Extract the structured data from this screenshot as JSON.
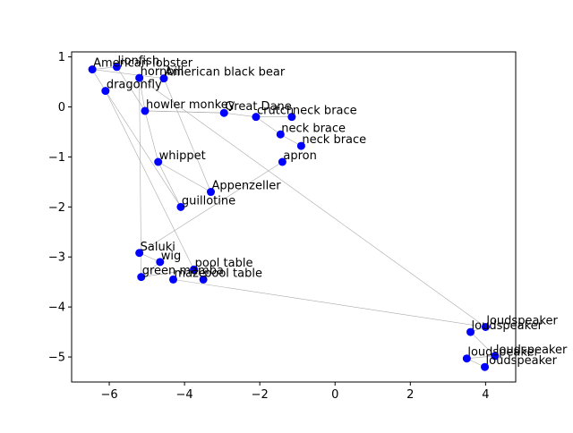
{
  "chart_data": {
    "type": "scatter",
    "title": "",
    "xlabel": "",
    "ylabel": "",
    "xlim": [
      -7.0,
      4.8
    ],
    "ylim": [
      -5.5,
      1.1
    ],
    "xticks": [
      -6,
      -4,
      -2,
      0,
      2,
      4
    ],
    "yticks": [
      1,
      0,
      -1,
      -2,
      -3,
      -4,
      -5
    ],
    "xtick_labels": [
      "−6",
      "−4",
      "−2",
      "0",
      "2",
      "4"
    ],
    "ytick_labels": [
      "1",
      "0",
      "−1",
      "−2",
      "−3",
      "−4",
      "−5"
    ],
    "grid": false,
    "marker_color": "#0000ff",
    "line_color": "#aaaaaa",
    "points": [
      {
        "label": "lionfish",
        "x": -5.8,
        "y": 0.8
      },
      {
        "label": "American lobster",
        "x": -6.45,
        "y": 0.75
      },
      {
        "label": "hornbill",
        "x": -5.2,
        "y": 0.58
      },
      {
        "label": "American black bear",
        "x": -4.55,
        "y": 0.57
      },
      {
        "label": "dragonfly",
        "x": -6.1,
        "y": 0.32
      },
      {
        "label": "howler monkey",
        "x": -5.05,
        "y": -0.08
      },
      {
        "label": "Great Dane",
        "x": -2.95,
        "y": -0.12
      },
      {
        "label": "crutch",
        "x": -2.1,
        "y": -0.2
      },
      {
        "label": "neck brace",
        "x": -1.15,
        "y": -0.2
      },
      {
        "label": "neck brace",
        "x": -1.45,
        "y": -0.55
      },
      {
        "label": "neck brace",
        "x": -0.9,
        "y": -0.78
      },
      {
        "label": "apron",
        "x": -1.4,
        "y": -1.1
      },
      {
        "label": "whippet",
        "x": -4.7,
        "y": -1.1
      },
      {
        "label": "Appenzeller",
        "x": -3.3,
        "y": -1.7
      },
      {
        "label": "guillotine",
        "x": -4.1,
        "y": -2.0
      },
      {
        "label": "Saluki",
        "x": -5.2,
        "y": -2.92
      },
      {
        "label": "wig",
        "x": -4.65,
        "y": -3.1
      },
      {
        "label": "pool table",
        "x": -3.75,
        "y": -3.25
      },
      {
        "label": "green mamba",
        "x": -5.15,
        "y": -3.4
      },
      {
        "label": "maze",
        "x": -4.3,
        "y": -3.45
      },
      {
        "label": "pool table",
        "x": -3.5,
        "y": -3.45
      },
      {
        "label": "loudspeaker",
        "x": 4.0,
        "y": -4.4
      },
      {
        "label": "loudspeaker",
        "x": 3.6,
        "y": -4.5
      },
      {
        "label": "loudspeaker",
        "x": 4.25,
        "y": -4.98
      },
      {
        "label": "loudspeaker",
        "x": 3.5,
        "y": -5.03
      },
      {
        "label": "loudspeaker",
        "x": 3.98,
        "y": -5.2
      }
    ],
    "edges": [
      [
        0,
        1
      ],
      [
        1,
        3
      ],
      [
        3,
        13
      ],
      [
        2,
        18
      ],
      [
        1,
        4
      ],
      [
        4,
        14
      ],
      [
        4,
        17
      ],
      [
        0,
        5
      ],
      [
        5,
        6
      ],
      [
        6,
        7
      ],
      [
        7,
        8
      ],
      [
        9,
        10
      ],
      [
        7,
        9
      ],
      [
        6,
        5
      ],
      [
        5,
        12
      ],
      [
        12,
        14
      ],
      [
        12,
        13
      ],
      [
        11,
        15
      ],
      [
        15,
        16
      ],
      [
        16,
        18
      ],
      [
        18,
        17
      ],
      [
        17,
        20
      ],
      [
        19,
        21
      ],
      [
        21,
        22
      ],
      [
        22,
        23
      ],
      [
        23,
        24
      ],
      [
        24,
        25
      ],
      [
        2,
        21
      ],
      [
        2,
        5
      ]
    ]
  }
}
